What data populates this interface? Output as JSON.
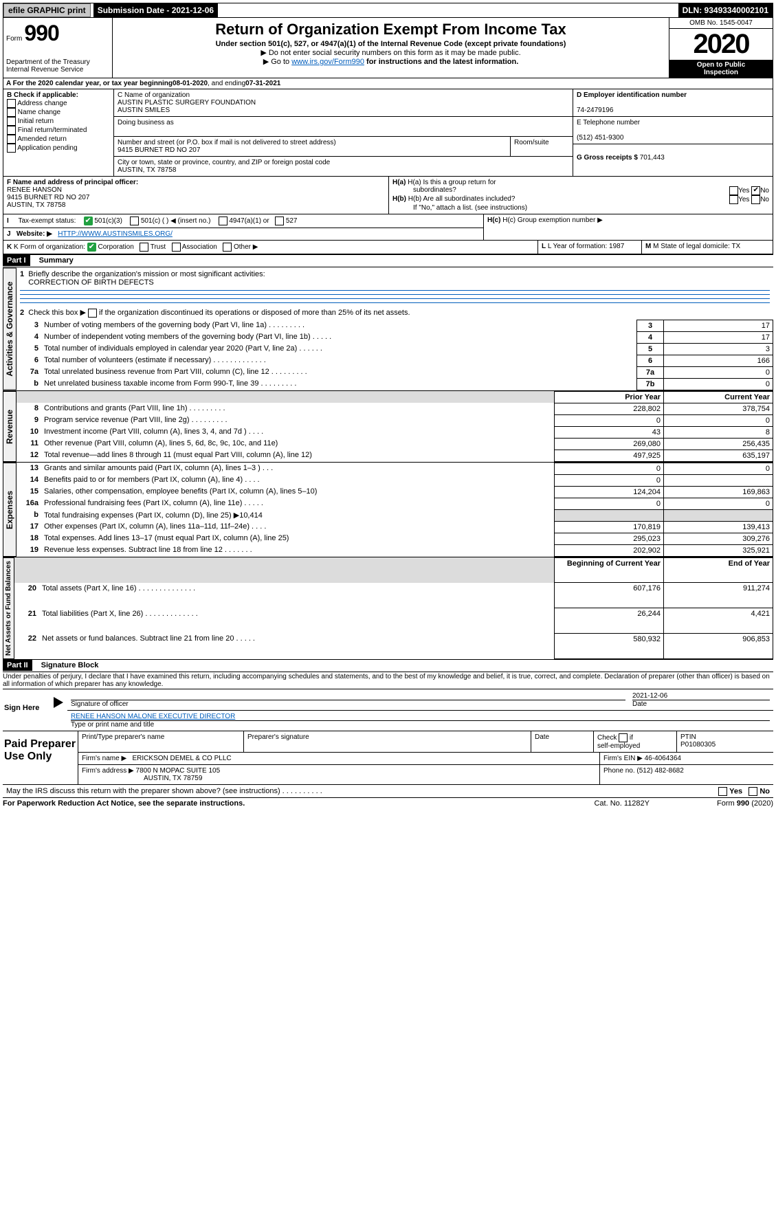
{
  "topbar": {
    "efile": "efile GRAPHIC print",
    "submission": "Submission Date - 2021-12-06",
    "dln": "DLN: 93493340002101"
  },
  "header": {
    "form": "Form",
    "num": "990",
    "title": "Return of Organization Exempt From Income Tax",
    "sub1": "Under section 501(c), 527, or 4947(a)(1) of the Internal Revenue Code (except private foundations)",
    "sub2": "▶ Do not enter social security numbers on this form as it may be made public.",
    "sub3": "▶ Go to ",
    "sub3link": "www.irs.gov/Form990",
    "sub3b": " for instructions and the latest information.",
    "dept": "Department of the Treasury",
    "irs": "Internal Revenue Service",
    "omb": "OMB No. 1545-0047",
    "year": "2020",
    "open": "Open to Public",
    "insp": "Inspection"
  },
  "lineA": {
    "pre": "A For the 2020 calendar year, or tax year beginning ",
    "begin": "08-01-2020",
    "mid": " , and ending ",
    "end": "07-31-2021"
  },
  "boxB": {
    "hdr": "B Check if applicable:",
    "opts": [
      "Address change",
      "Name change",
      "Initial return",
      "Final return/terminated",
      "Amended return",
      "Application pending"
    ]
  },
  "boxC": {
    "lbl": "C Name of organization",
    "name1": "AUSTIN PLASTIC SURGERY FOUNDATION",
    "name2": "AUSTIN SMILES",
    "dba": "Doing business as",
    "addrlbl": "Number and street (or P.O. box if mail is not delivered to street address)",
    "room": "Room/suite",
    "addr": "9415 BURNET RD NO 207",
    "citylbl": "City or town, state or province, country, and ZIP or foreign postal code",
    "city": "AUSTIN, TX  78758"
  },
  "boxD": {
    "lbl": "D Employer identification number",
    "ein": "74-2479196"
  },
  "boxE": {
    "lbl": "E Telephone number",
    "tel": "(512) 451-9300"
  },
  "boxG": {
    "lbl": "G Gross receipts $",
    "val": "701,443"
  },
  "boxF": {
    "lbl": "F  Name and address of principal officer:",
    "n": "RENEE HANSON",
    "a1": "9415 BURNET RD NO 207",
    "a2": "AUSTIN, TX  78758"
  },
  "boxH": {
    "a": "H(a)  Is this a group return for",
    "a2": "subordinates?",
    "b": "H(b)  Are all subordinates included?",
    "note": "If \"No,\" attach a list. (see instructions)",
    "c": "H(c)  Group exemption number ▶",
    "yes": "Yes",
    "no": "No"
  },
  "lineI": {
    "lbl": "Tax-exempt status:",
    "a": "501(c)(3)",
    "b": "501(c) (   ) ◀ (insert no.)",
    "c": "4947(a)(1) or",
    "d": "527"
  },
  "lineJ": {
    "lbl": "Website: ▶",
    "url": "HTTP://WWW.AUSTINSMILES.ORG/"
  },
  "lineK": {
    "lbl": "K Form of organization:",
    "opts": [
      "Corporation",
      "Trust",
      "Association",
      "Other ▶"
    ]
  },
  "boxL": {
    "lbl": "L Year of formation:",
    "val": "1987"
  },
  "boxM": {
    "lbl": "M State of legal domicile:",
    "val": "TX"
  },
  "partI": {
    "lbl": "Part I",
    "title": "Summary"
  },
  "summary": {
    "l1": "Briefly describe the organization's mission or most significant activities:",
    "mission": "CORRECTION OF BIRTH DEFECTS",
    "l2": "Check this box ▶",
    "l2b": "if the organization discontinued its operations or disposed of more than 25% of its net assets.",
    "rows": [
      {
        "n": "3",
        "t": "Number of voting members of the governing body (Part VI, line 1a)   .    .    .    .    .    .    .    .    .",
        "c": "3",
        "v": "17"
      },
      {
        "n": "4",
        "t": "Number of independent voting members of the governing body (Part VI, line 1b)   .    .    .    .    .",
        "c": "4",
        "v": "17"
      },
      {
        "n": "5",
        "t": "Total number of individuals employed in calendar year 2020 (Part V, line 2a)   .    .    .    .    .    .",
        "c": "5",
        "v": "3"
      },
      {
        "n": "6",
        "t": "Total number of volunteers (estimate if necessary)   .    .    .    .    .    .    .    .    .    .    .    .    .",
        "c": "6",
        "v": "166"
      },
      {
        "n": "7a",
        "t": "Total unrelated business revenue from Part VIII, column (C), line 12  .    .    .    .    .    .    .    .    .",
        "c": "7a",
        "v": "0"
      },
      {
        "n": "b",
        "t": "Net unrelated business taxable income from Form 990-T, line 39  .    .    .    .    .    .    .    .    .",
        "c": "7b",
        "v": "0"
      }
    ],
    "vlabels": {
      "ag": "Activities & Governance",
      "rev": "Revenue",
      "exp": "Expenses",
      "na": "Net Assets or\nFund Balances"
    },
    "hdr_prior": "Prior Year",
    "hdr_curr": "Current Year",
    "rev": [
      {
        "n": "8",
        "t": "Contributions and grants (Part VIII, line 1h)   .    .    .    .    .    .    .    .    .",
        "p": "228,802",
        "c": "378,754"
      },
      {
        "n": "9",
        "t": "Program service revenue (Part VIII, line 2g)   .    .    .    .    .    .    .    .    .",
        "p": "0",
        "c": "0"
      },
      {
        "n": "10",
        "t": "Investment income (Part VIII, column (A), lines 3, 4, and 7d )   .    .    .    .",
        "p": "43",
        "c": "8"
      },
      {
        "n": "11",
        "t": "Other revenue (Part VIII, column (A), lines 5, 6d, 8c, 9c, 10c, and 11e)",
        "p": "269,080",
        "c": "256,435"
      },
      {
        "n": "12",
        "t": "Total revenue—add lines 8 through 11 (must equal Part VIII, column (A), line 12)",
        "p": "497,925",
        "c": "635,197"
      }
    ],
    "exp": [
      {
        "n": "13",
        "t": "Grants and similar amounts paid (Part IX, column (A), lines 1–3 )   .    .    .",
        "p": "0",
        "c": "0"
      },
      {
        "n": "14",
        "t": "Benefits paid to or for members (Part IX, column (A), line 4)   .    .    .    .",
        "p": "0",
        "c": ""
      },
      {
        "n": "15",
        "t": "Salaries, other compensation, employee benefits (Part IX, column (A), lines 5–10)",
        "p": "124,204",
        "c": "169,863"
      },
      {
        "n": "16a",
        "t": "Professional fundraising fees (Part IX, column (A), line 11e)   .    .    .    .    .",
        "p": "0",
        "c": "0"
      },
      {
        "n": "b",
        "t": "Total fundraising expenses (Part IX, column (D), line 25) ▶10,414",
        "p": "gray",
        "c": "gray"
      },
      {
        "n": "17",
        "t": "Other expenses (Part IX, column (A), lines 11a–11d, 11f–24e)   .    .    .    .",
        "p": "170,819",
        "c": "139,413"
      },
      {
        "n": "18",
        "t": "Total expenses. Add lines 13–17 (must equal Part IX, column (A), line 25)",
        "p": "295,023",
        "c": "309,276"
      },
      {
        "n": "19",
        "t": "Revenue less expenses. Subtract line 18 from line 12  .    .    .    .    .    .    .",
        "p": "202,902",
        "c": "325,921"
      }
    ],
    "hdr_boy": "Beginning of Current Year",
    "hdr_eoy": "End of Year",
    "na": [
      {
        "n": "20",
        "t": "Total assets (Part X, line 16)   .    .    .    .    .    .    .    .    .    .    .    .    .    .",
        "p": "607,176",
        "c": "911,274"
      },
      {
        "n": "21",
        "t": "Total liabilities (Part X, line 26)   .    .    .    .    .    .    .    .    .    .    .    .    .",
        "p": "26,244",
        "c": "4,421"
      },
      {
        "n": "22",
        "t": "Net assets or fund balances. Subtract line 21 from line 20  .    .    .    .    .",
        "p": "580,932",
        "c": "906,853"
      }
    ]
  },
  "partII": {
    "lbl": "Part II",
    "title": "Signature Block",
    "decl": "Under penalties of perjury, I declare that I have examined this return, including accompanying schedules and statements, and to the best of my knowledge and belief, it is true, correct, and complete. Declaration of preparer (other than officer) is based on all information of which preparer has any knowledge."
  },
  "sign": {
    "here": "Sign Here",
    "siglbl": "Signature of officer",
    "date": "2021-12-06",
    "datelbl": "Date",
    "name": "RENEE HANSON MALONE  EXECUTIVE DIRECTOR",
    "namelbl": "Type or print name and title"
  },
  "paid": {
    "hdr": "Paid Preparer Use Only",
    "plbl": "Print/Type preparer's name",
    "siglbl": "Preparer's signature",
    "datelbl": "Date",
    "checklbl": "Check",
    "selfe": "self-employed",
    "if": "if",
    "ptinlbl": "PTIN",
    "ptin": "P01080305",
    "firmlbl": "Firm's name   ▶",
    "firm": "ERICKSON DEMEL & CO PLLC",
    "einlbl": "Firm's EIN ▶",
    "ein": "46-4064364",
    "addrlbl": "Firm's address ▶",
    "addr1": "7800 N MOPAC SUITE 105",
    "addr2": "AUSTIN, TX  78759",
    "phonelbl": "Phone no.",
    "phone": "(512) 482-8682"
  },
  "discuss": "May the IRS discuss this return with the preparer shown above? (see instructions)    .    .    .    .    .    .    .    .    .    .",
  "yes": "Yes",
  "no": "No",
  "foot": {
    "pra": "For Paperwork Reduction Act Notice, see the separate instructions.",
    "cat": "Cat. No. 11282Y",
    "form": "Form 990 (2020)"
  }
}
